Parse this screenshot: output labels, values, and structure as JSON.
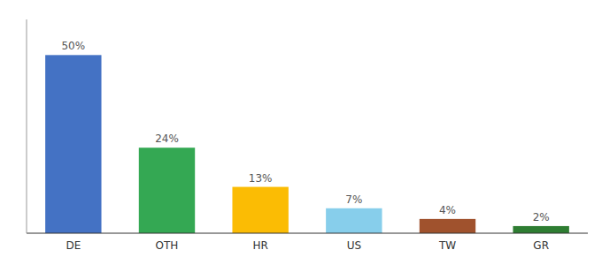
{
  "chart_data": {
    "type": "bar",
    "categories": [
      "DE",
      "OTH",
      "HR",
      "US",
      "TW",
      "GR"
    ],
    "values": [
      50,
      24,
      13,
      7,
      4,
      2
    ],
    "value_labels": [
      "50%",
      "24%",
      "13%",
      "7%",
      "4%",
      "2%"
    ],
    "colors": [
      "#4472C4",
      "#34A853",
      "#FBBC04",
      "#87CEEB",
      "#A0522D",
      "#2E7D32"
    ],
    "ylim": [
      0,
      60
    ],
    "data_labels": true,
    "tick_labels": "x",
    "grid": false
  }
}
